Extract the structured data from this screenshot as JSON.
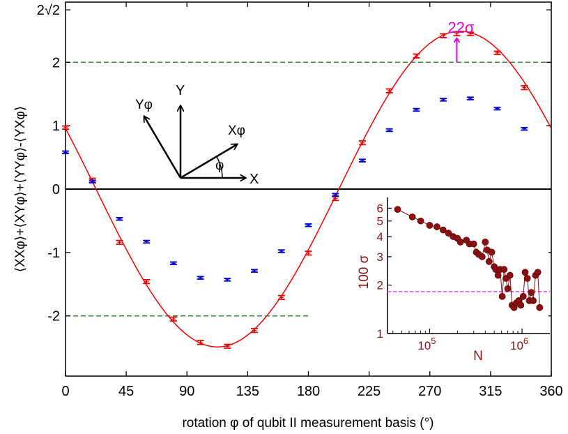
{
  "chart_data": {
    "type": "scatter",
    "xlabel": "rotation φ of qubit II measurement basis (°)",
    "ylabel": "⟨XXφ⟩+⟨XYφ⟩+⟨YYφ⟩-⟨YXφ⟩",
    "xlim": [
      0,
      360
    ],
    "ylim": [
      -2.95,
      2.95
    ],
    "x_ticks": [
      0,
      45,
      90,
      135,
      180,
      225,
      270,
      315,
      360
    ],
    "x_tick_labels": [
      "0",
      "45",
      "90",
      "135",
      "180",
      "225",
      "270",
      "315",
      "360"
    ],
    "y_ticks": [
      -2,
      -1,
      0,
      1,
      2,
      2.828
    ],
    "y_tick_labels": [
      "-2",
      "-1",
      "0",
      "1",
      "2",
      "2√2"
    ],
    "grid": false,
    "classical_bounds": [
      {
        "y": 2,
        "x_range": [
          0,
          360
        ],
        "color": "#2e8b2e"
      },
      {
        "y": -2,
        "x_range": [
          0,
          180
        ],
        "color": "#2e8b2e"
      }
    ],
    "fit_curve": {
      "amplitude": 2.49,
      "phase_deg": 22.6,
      "x_range": [
        0,
        360
      ],
      "color": "#ee0000"
    },
    "series": [
      {
        "color": "#ee0000",
        "x": [
          0,
          20,
          40,
          60,
          80,
          100,
          120,
          140,
          160,
          180,
          200,
          220,
          240,
          260,
          280,
          290,
          300,
          320,
          340
        ],
        "y": [
          0.97,
          0.14,
          -0.84,
          -1.46,
          -2.05,
          -2.42,
          -2.48,
          -2.23,
          -1.71,
          -1.01,
          -0.15,
          0.73,
          1.55,
          2.1,
          2.42,
          2.45,
          2.45,
          2.15,
          1.6
        ],
        "err": [
          0.025,
          0.03,
          0.03,
          0.03,
          0.03,
          0.03,
          0.03,
          0.03,
          0.03,
          0.03,
          0.03,
          0.03,
          0.03,
          0.03,
          0.03,
          0.03,
          0.025,
          0.025,
          0.03
        ]
      },
      {
        "color": "#0000cc",
        "x": [
          0,
          20,
          40,
          60,
          80,
          100,
          120,
          140,
          160,
          180,
          200,
          220,
          240,
          260,
          280,
          300,
          320,
          340
        ],
        "y": [
          0.58,
          0.12,
          -0.47,
          -0.83,
          -1.17,
          -1.4,
          -1.43,
          -1.29,
          -0.98,
          -0.57,
          -0.09,
          0.45,
          0.93,
          1.25,
          1.41,
          1.43,
          1.27,
          0.95
        ],
        "err": [
          0.02,
          0.02,
          0.02,
          0.02,
          0.02,
          0.02,
          0.02,
          0.02,
          0.02,
          0.02,
          0.02,
          0.02,
          0.02,
          0.02,
          0.02,
          0.02,
          0.02,
          0.02
        ]
      }
    ],
    "annotation": {
      "text": "22σ",
      "x": 290,
      "color": "#e000e0"
    },
    "basis_diagram": {
      "labels": [
        "Y",
        "X",
        "Yφ",
        "Xφ",
        "φ"
      ]
    },
    "inset": {
      "type": "scatter",
      "xlabel": "N",
      "ylabel": "100 σ",
      "x_scale": "log",
      "y_scale": "log",
      "xlim": [
        35000,
        2000000
      ],
      "ylim": [
        1,
        7
      ],
      "x_tick_labels": [
        {
          "base": "10",
          "exp": "5"
        },
        {
          "base": "10",
          "exp": "6"
        }
      ],
      "y_tick_labels": [
        "1",
        "2",
        "3",
        "4",
        "5",
        "6"
      ],
      "reference_line": {
        "y": 1.82,
        "color": "#e040e0"
      },
      "color": "#8b1010",
      "x": [
        45000,
        65000,
        80000,
        100000,
        120000,
        140000,
        160000,
        180000,
        200000,
        215000,
        250000,
        270000,
        300000,
        320000,
        340000,
        370000,
        400000,
        420000,
        440000,
        470000,
        500000,
        520000,
        550000,
        580000,
        610000,
        640000,
        670000,
        700000,
        740000,
        780000,
        820000,
        870000,
        920000,
        970000,
        1030000,
        1080000,
        1140000,
        1200000,
        1260000,
        1320000,
        1400000,
        1480000,
        1550000
      ],
      "y": [
        5.9,
        5.3,
        5.0,
        4.7,
        4.6,
        4.4,
        4.2,
        4.0,
        3.9,
        3.7,
        3.8,
        3.6,
        3.6,
        3.2,
        3.1,
        3.0,
        3.7,
        3.3,
        2.8,
        3.2,
        2.6,
        2.5,
        2.3,
        2.5,
        1.7,
        2.5,
        2.2,
        1.9,
        2.3,
        1.5,
        1.45,
        1.55,
        1.6,
        1.5,
        1.7,
        2.4,
        2.2,
        1.6,
        1.8,
        1.6,
        2.3,
        2.4,
        1.45
      ]
    }
  }
}
